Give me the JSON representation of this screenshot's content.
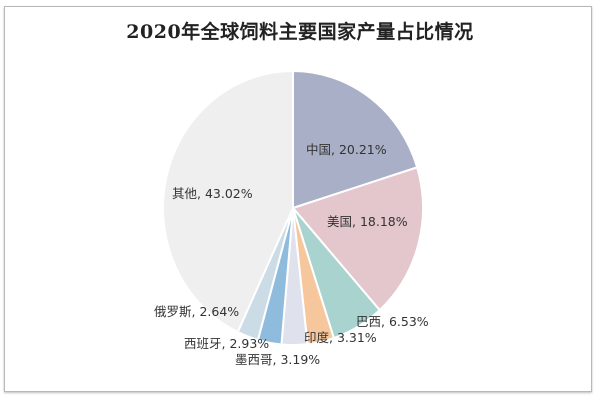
{
  "chart_data": {
    "type": "pie",
    "title": "2020年全球饲料主要国家产量占比情况",
    "start_angle": "12 o'clock",
    "direction": "clockwise",
    "categories": [
      "中国",
      "美国",
      "巴西",
      "印度",
      "墨西哥",
      "西班牙",
      "俄罗斯",
      "其他"
    ],
    "values": [
      20.21,
      18.18,
      6.53,
      3.31,
      3.19,
      2.93,
      2.64,
      43.02
    ],
    "unit": "%",
    "colors": [
      "#a9afc6",
      "#e3c7cd",
      "#a9d3cf",
      "#f6c69c",
      "#dfe1ec",
      "#8fbcdd",
      "#cbdce7",
      "#efefef"
    ],
    "labels": [
      "中国, 20.21%",
      "美国, 18.18%",
      "巴西, 6.53%",
      "印度, 3.31%",
      "墨西哥, 3.19%",
      "西班牙, 2.93%",
      "俄罗斯, 2.64%",
      "其他, 43.02%"
    ],
    "legend": "none (data labels on/near slices)"
  }
}
